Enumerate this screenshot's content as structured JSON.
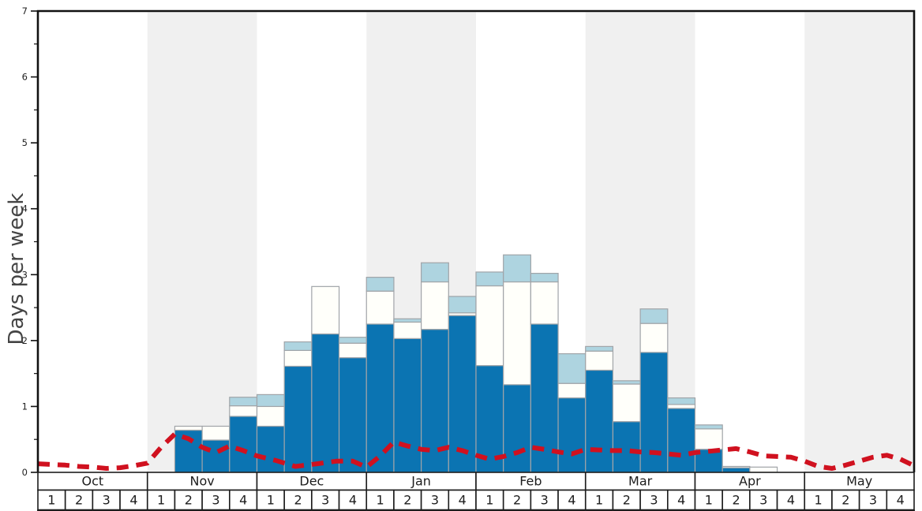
{
  "chart_data": {
    "type": "stacked-bar+line",
    "title": "",
    "ylabel": "Days per week",
    "ylim": [
      0,
      7
    ],
    "yticks": [
      0,
      1,
      2,
      3,
      4,
      5,
      6,
      7
    ],
    "minor_yticks": [
      0.5,
      1.5,
      2.5,
      3.5,
      4.5,
      5.5,
      6.5
    ],
    "grid": false,
    "months": [
      {
        "label": "Oct",
        "weeks": [
          "1",
          "2",
          "3",
          "4"
        ],
        "shaded": false
      },
      {
        "label": "Nov",
        "weeks": [
          "1",
          "2",
          "3",
          "4"
        ],
        "shaded": true
      },
      {
        "label": "Dec",
        "weeks": [
          "1",
          "2",
          "3",
          "4"
        ],
        "shaded": false
      },
      {
        "label": "Jan",
        "weeks": [
          "1",
          "2",
          "3",
          "4"
        ],
        "shaded": true
      },
      {
        "label": "Feb",
        "weeks": [
          "1",
          "2",
          "3",
          "4"
        ],
        "shaded": false
      },
      {
        "label": "Mar",
        "weeks": [
          "1",
          "2",
          "3",
          "4"
        ],
        "shaded": true
      },
      {
        "label": "Apr",
        "weeks": [
          "1",
          "2",
          "3",
          "4"
        ],
        "shaded": false
      },
      {
        "label": "May",
        "weeks": [
          "1",
          "2",
          "3",
          "4"
        ],
        "shaded": true
      }
    ],
    "series": [
      {
        "name": "bottom-dark-blue-days",
        "color": "#0b74b2",
        "values": [
          0,
          0,
          0,
          0,
          0,
          0.64,
          0.49,
          0.85,
          0.7,
          1.61,
          2.1,
          1.74,
          2.25,
          2.03,
          2.17,
          2.38,
          1.62,
          1.33,
          2.25,
          1.13,
          1.55,
          0.77,
          1.82,
          0.97,
          0.35,
          0.07,
          0,
          0,
          0,
          0,
          0,
          0
        ]
      },
      {
        "name": "middle-white-days",
        "color": "#fffffa",
        "values": [
          0,
          0,
          0,
          0,
          0,
          0.06,
          0.21,
          0.16,
          0.3,
          0.24,
          0.72,
          0.22,
          0.5,
          0.25,
          0.72,
          0.04,
          1.21,
          1.56,
          0.64,
          0.22,
          0.29,
          0.57,
          0.44,
          0.06,
          0.31,
          0.02,
          0.08,
          0,
          0,
          0,
          0,
          0
        ]
      },
      {
        "name": "top-light-blue-days",
        "color": "#aed4e0",
        "values": [
          0,
          0,
          0,
          0,
          0,
          0,
          0,
          0.13,
          0.18,
          0.13,
          0,
          0.09,
          0.21,
          0.05,
          0.29,
          0.25,
          0.21,
          0.41,
          0.13,
          0.45,
          0.07,
          0.05,
          0.22,
          0.1,
          0.06,
          0,
          0,
          0,
          0,
          0,
          0,
          0
        ]
      }
    ],
    "line": {
      "name": "red-dashed-average-line",
      "color": "#d0111f",
      "dash": [
        15,
        10
      ],
      "width": 6,
      "points_x_in_weeks": [
        [
          0,
          0.13
        ],
        [
          0.5,
          0.12
        ],
        [
          1,
          0.11
        ],
        [
          1.5,
          0.09
        ],
        [
          2,
          0.08
        ],
        [
          2.5,
          0.06
        ],
        [
          3,
          0.07
        ],
        [
          3.5,
          0.1
        ],
        [
          4,
          0.14
        ],
        [
          4.5,
          0.38
        ],
        [
          5,
          0.58
        ],
        [
          5.5,
          0.51
        ],
        [
          6,
          0.38
        ],
        [
          6.5,
          0.3
        ],
        [
          7,
          0.4
        ],
        [
          7.5,
          0.33
        ],
        [
          8,
          0.25
        ],
        [
          8.7,
          0.18
        ],
        [
          9.4,
          0.09
        ],
        [
          10.2,
          0.13
        ],
        [
          10.9,
          0.17
        ],
        [
          11.5,
          0.17
        ],
        [
          12,
          0.08
        ],
        [
          12.5,
          0.25
        ],
        [
          13,
          0.46
        ],
        [
          13.5,
          0.4
        ],
        [
          14,
          0.35
        ],
        [
          14.5,
          0.33
        ],
        [
          15,
          0.38
        ],
        [
          15.5,
          0.33
        ],
        [
          16,
          0.26
        ],
        [
          16.5,
          0.2
        ],
        [
          17,
          0.24
        ],
        [
          17.5,
          0.3
        ],
        [
          18,
          0.38
        ],
        [
          18.5,
          0.35
        ],
        [
          19,
          0.31
        ],
        [
          19.5,
          0.28
        ],
        [
          20,
          0.35
        ],
        [
          20.5,
          0.34
        ],
        [
          21,
          0.33
        ],
        [
          21.5,
          0.33
        ],
        [
          22,
          0.31
        ],
        [
          22.5,
          0.3
        ],
        [
          23,
          0.28
        ],
        [
          23.5,
          0.26
        ],
        [
          24,
          0.3
        ],
        [
          24.5,
          0.32
        ],
        [
          25,
          0.34
        ],
        [
          25.5,
          0.36
        ],
        [
          26,
          0.31
        ],
        [
          26.5,
          0.25
        ],
        [
          27,
          0.24
        ],
        [
          27.5,
          0.23
        ],
        [
          28,
          0.17
        ],
        [
          28.5,
          0.09
        ],
        [
          29,
          0.06
        ],
        [
          29.5,
          0.11
        ],
        [
          30,
          0.17
        ],
        [
          30.5,
          0.23
        ],
        [
          31,
          0.26
        ],
        [
          31.5,
          0.2
        ],
        [
          32,
          0.1
        ]
      ]
    },
    "colors": {
      "band": "#f0f0f0",
      "bar_border": "#a0a4a8",
      "frame": "#111111",
      "table_border": "#1d1d1d",
      "table_fill": "#ffffff",
      "tick_text": "#222222",
      "ylabel_text": "#444444",
      "background": "#ffffff"
    }
  }
}
